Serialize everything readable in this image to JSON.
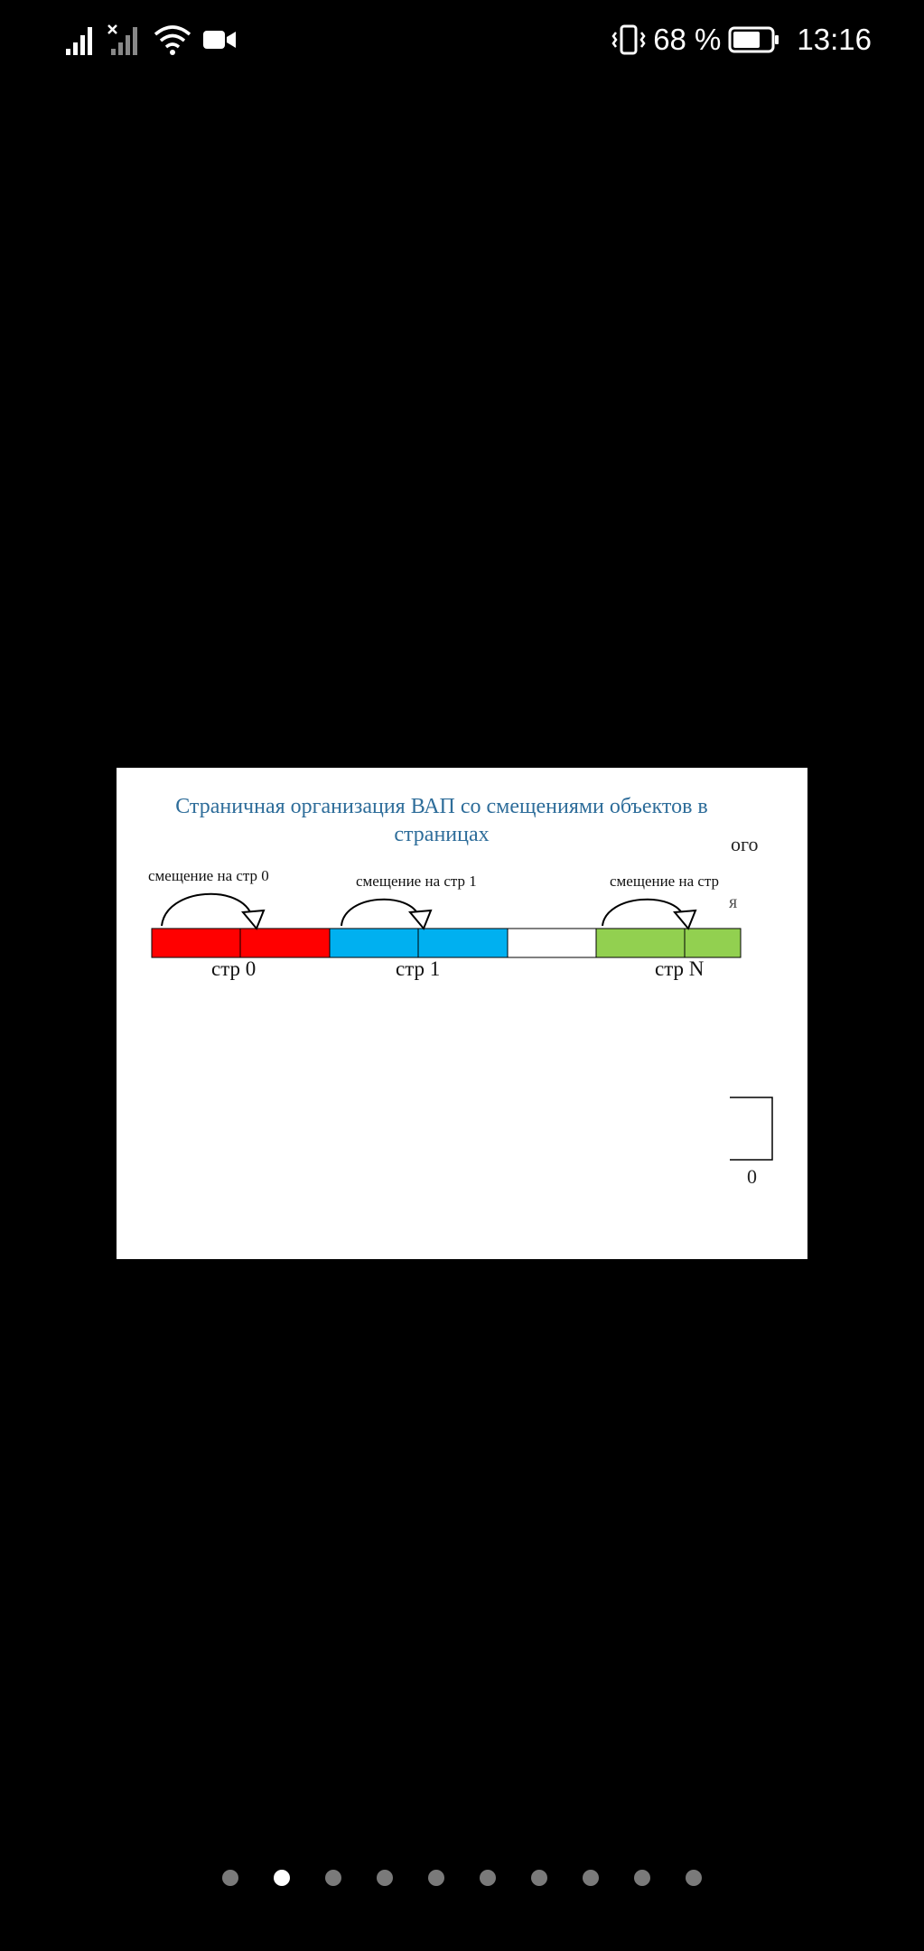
{
  "status_bar": {
    "battery_percent": "68 %",
    "time": "13:16",
    "icons": [
      "signal-icon",
      "signal-no-sim-icon",
      "wifi-icon",
      "video-camera-icon",
      "vibrate-icon",
      "battery-icon"
    ]
  },
  "slide": {
    "title_line1": "Страничная организация ВАП со смещениями объектов в",
    "title_line2": "страницах",
    "fragment_right_1": "ого",
    "fragment_right_2": "я",
    "fragment_zero": "0",
    "offset_labels": [
      "смещение на стр 0",
      "смещение на стр 1",
      "смещение на стр"
    ],
    "page_labels": [
      "стр 0",
      "стр 1",
      "стр N"
    ],
    "segment_colors": {
      "page0": "#ff0000",
      "page1": "#00b0f0",
      "gap": "#ffffff",
      "pageN": "#92d050"
    }
  },
  "pagination": {
    "total": 10,
    "active_index": 1
  }
}
